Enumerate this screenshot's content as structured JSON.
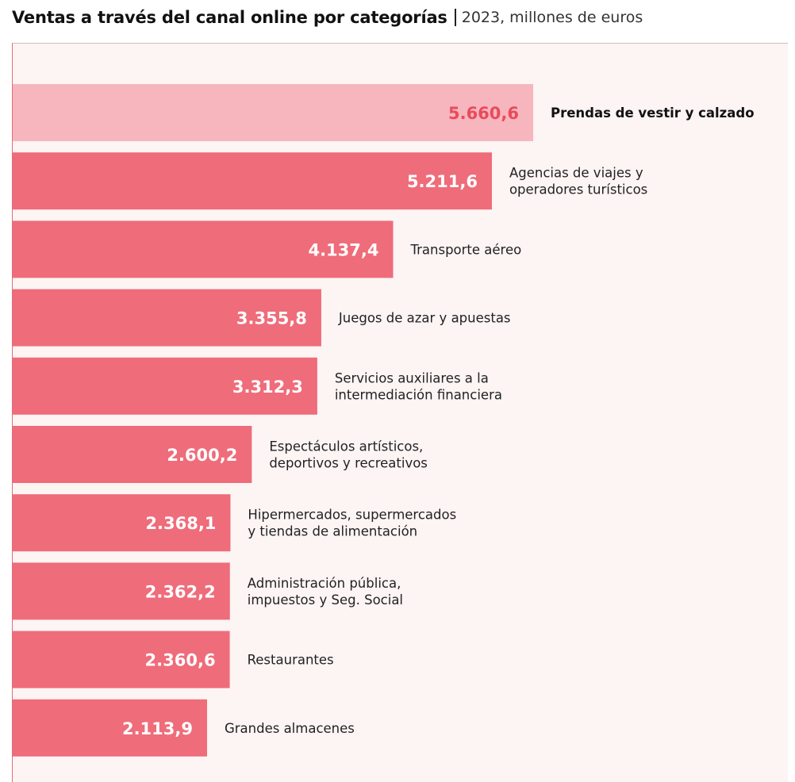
{
  "chart_data": {
    "type": "bar",
    "orientation": "horizontal",
    "title": "Ventas a través del canal online por categorías",
    "subtitle": "2023, millones de euros",
    "categories": [
      [
        "Prendas de vestir y calzado"
      ],
      [
        "Agencias de viajes y",
        "operadores turísticos"
      ],
      [
        "Transporte aéreo"
      ],
      [
        "Juegos de azar y apuestas"
      ],
      [
        "Servicios auxiliares a la",
        "intermediación financiera"
      ],
      [
        "Espectáculos artísticos,",
        "deportivos y recreativos"
      ],
      [
        "Hipermercados, supermercados",
        "y tiendas de alimentación"
      ],
      [
        "Administración pública,",
        "impuestos y Seg. Social"
      ],
      [
        "Restaurantes"
      ],
      [
        "Grandes almacenes"
      ]
    ],
    "values": [
      5660.6,
      5211.6,
      4137.4,
      3355.8,
      3312.3,
      2600.2,
      2368.1,
      2362.2,
      2360.6,
      2113.9
    ],
    "value_labels": [
      "5.660,6",
      "5.211,6",
      "4.137,4",
      "3.355,8",
      "3.312,3",
      "2.600,2",
      "2.368,1",
      "2.362,2",
      "2.360,6",
      "2.113,9"
    ],
    "highlight_index": 0,
    "xlim": [
      0,
      5660.6
    ],
    "colors": {
      "bar": "#ef6c7a",
      "bar_highlight": "#f7b6bd",
      "value_text": "#ffffff",
      "value_text_highlight": "#e94b5b",
      "panel_background": "#fdf4f4"
    }
  }
}
